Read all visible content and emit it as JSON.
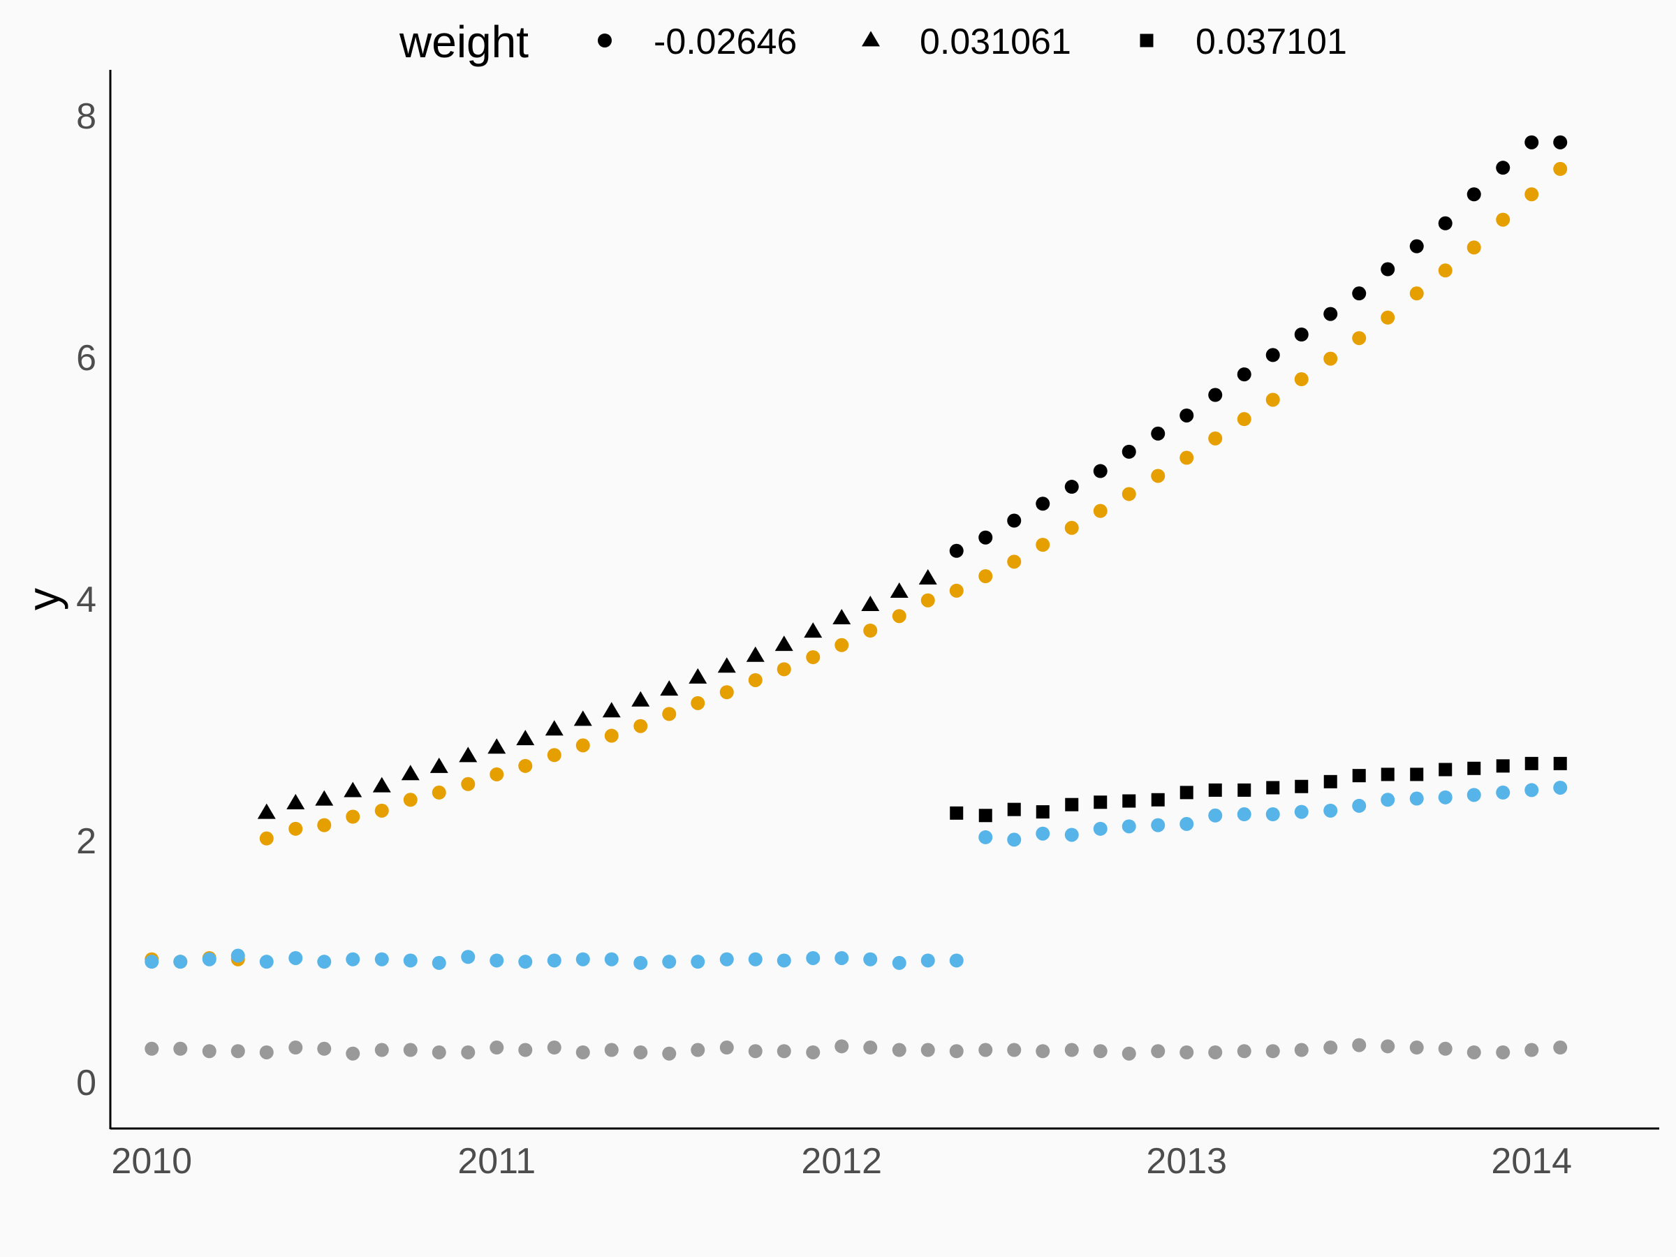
{
  "chart_data": {
    "type": "scatter",
    "title": "",
    "xlabel": "",
    "ylabel": "y",
    "xlim": [
      2009.88,
      2014.37
    ],
    "ylim": [
      -0.38,
      8.38
    ],
    "x_ticks": [
      2010,
      2011,
      2012,
      2013,
      2014
    ],
    "x_tick_labels": [
      "2010",
      "2011",
      "2012",
      "2013",
      "2014"
    ],
    "y_ticks": [
      0,
      2,
      4,
      6,
      8
    ],
    "y_tick_labels": [
      "0",
      "2",
      "4",
      "6",
      "8"
    ],
    "grid": false,
    "legend": {
      "title": "weight",
      "position": "top",
      "entries": [
        {
          "label": "-0.02646",
          "shape": "circle"
        },
        {
          "label": "0.031061",
          "shape": "triangle"
        },
        {
          "label": "0.037101",
          "shape": "square"
        }
      ]
    },
    "colors": {
      "black": "#000000",
      "orange": "#E69F00",
      "blue": "#56B4E9",
      "grey": "#999999"
    },
    "series": [
      {
        "shape": "triangle",
        "color": "#000000",
        "x": [
          2010.333,
          2010.417,
          2010.5,
          2010.583,
          2010.667,
          2010.75,
          2010.833,
          2010.917,
          2011.0,
          2011.083,
          2011.167,
          2011.25,
          2011.333,
          2011.417,
          2011.5,
          2011.583,
          2011.667,
          2011.75,
          2011.833,
          2011.917,
          2012.0,
          2012.083,
          2012.167,
          2012.25
        ],
        "y": [
          2.23,
          2.31,
          2.34,
          2.41,
          2.45,
          2.55,
          2.61,
          2.7,
          2.77,
          2.84,
          2.92,
          3.0,
          3.07,
          3.16,
          3.25,
          3.35,
          3.44,
          3.53,
          3.62,
          3.73,
          3.84,
          3.95,
          4.06,
          4.17
        ]
      },
      {
        "shape": "circle",
        "color": "#000000",
        "x": [
          2012.333,
          2012.417,
          2012.5,
          2012.583,
          2012.667,
          2012.75,
          2012.833,
          2012.917,
          2013.0,
          2013.083,
          2013.167,
          2013.25,
          2013.333,
          2013.417,
          2013.5,
          2013.583,
          2013.667,
          2013.75,
          2013.833,
          2013.917,
          2014.0,
          2014.083
        ],
        "y": [
          4.4,
          4.51,
          4.65,
          4.79,
          4.93,
          5.06,
          5.22,
          5.37,
          5.52,
          5.69,
          5.86,
          6.02,
          6.19,
          6.36,
          6.53,
          6.73,
          6.92,
          7.11,
          7.35,
          7.57,
          7.78,
          7.78
        ]
      },
      {
        "shape": "circle",
        "color": "#E69F00",
        "x": [
          2010.0,
          2010.083,
          2010.167,
          2010.25,
          2010.333,
          2010.417,
          2010.5,
          2010.583,
          2010.667,
          2010.75,
          2010.833,
          2010.917,
          2011.0,
          2011.083,
          2011.167,
          2011.25,
          2011.333,
          2011.417,
          2011.5,
          2011.583,
          2011.667,
          2011.75,
          2011.833,
          2011.917,
          2012.0,
          2012.083,
          2012.167,
          2012.25,
          2012.333,
          2012.417,
          2012.5,
          2012.583,
          2012.667,
          2012.75,
          2012.833,
          2012.917,
          2013.0,
          2013.083,
          2013.167,
          2013.25,
          2013.333,
          2013.417,
          2013.5,
          2013.583,
          2013.667,
          2013.75,
          2013.833,
          2013.917,
          2014.0,
          2014.083
        ],
        "y": [
          1.02,
          1.0,
          1.03,
          1.02,
          2.02,
          2.1,
          2.13,
          2.2,
          2.25,
          2.34,
          2.4,
          2.47,
          2.55,
          2.62,
          2.71,
          2.79,
          2.87,
          2.95,
          3.05,
          3.14,
          3.23,
          3.33,
          3.42,
          3.52,
          3.62,
          3.74,
          3.86,
          3.99,
          4.07,
          4.19,
          4.31,
          4.45,
          4.59,
          4.73,
          4.87,
          5.02,
          5.17,
          5.33,
          5.49,
          5.65,
          5.82,
          5.99,
          6.16,
          6.33,
          6.53,
          6.72,
          6.91,
          7.14,
          7.35,
          7.56
        ]
      },
      {
        "shape": "circle",
        "color": "#56B4E9",
        "x": [
          2010.0,
          2010.083,
          2010.167,
          2010.25,
          2010.333,
          2010.417,
          2010.5,
          2010.583,
          2010.667,
          2010.75,
          2010.833,
          2010.917,
          2011.0,
          2011.083,
          2011.167,
          2011.25,
          2011.333,
          2011.417,
          2011.5,
          2011.583,
          2011.667,
          2011.75,
          2011.833,
          2011.917,
          2012.0,
          2012.083,
          2012.167,
          2012.25,
          2012.333,
          2012.417,
          2012.5,
          2012.583,
          2012.667,
          2012.75,
          2012.833,
          2012.917,
          2013.0,
          2013.083,
          2013.167,
          2013.25,
          2013.333,
          2013.417,
          2013.5,
          2013.583,
          2013.667,
          2013.75,
          2013.833,
          2013.917,
          2014.0,
          2014.083
        ],
        "y": [
          1.0,
          1.0,
          1.02,
          1.05,
          1.0,
          1.03,
          1.0,
          1.02,
          1.02,
          1.01,
          0.99,
          1.04,
          1.01,
          1.0,
          1.01,
          1.02,
          1.02,
          0.99,
          1.0,
          1.0,
          1.02,
          1.02,
          1.01,
          1.03,
          1.03,
          1.02,
          0.99,
          1.01,
          1.01,
          2.03,
          2.01,
          2.06,
          2.05,
          2.1,
          2.12,
          2.13,
          2.14,
          2.21,
          2.22,
          2.22,
          2.24,
          2.25,
          2.29,
          2.34,
          2.35,
          2.36,
          2.38,
          2.4,
          2.42,
          2.44
        ]
      },
      {
        "shape": "square",
        "color": "#000000",
        "x": [
          2012.333,
          2012.417,
          2012.5,
          2012.583,
          2012.667,
          2012.75,
          2012.833,
          2012.917,
          2013.0,
          2013.083,
          2013.167,
          2013.25,
          2013.333,
          2013.417,
          2013.5,
          2013.583,
          2013.667,
          2013.75,
          2013.833,
          2013.917,
          2014.0,
          2014.083
        ],
        "y": [
          2.23,
          2.21,
          2.26,
          2.24,
          2.3,
          2.32,
          2.33,
          2.34,
          2.4,
          2.42,
          2.42,
          2.44,
          2.45,
          2.49,
          2.54,
          2.55,
          2.55,
          2.59,
          2.6,
          2.62,
          2.64,
          2.64
        ]
      },
      {
        "shape": "circle",
        "color": "#999999",
        "x": [
          2010.0,
          2010.083,
          2010.167,
          2010.25,
          2010.333,
          2010.417,
          2010.5,
          2010.583,
          2010.667,
          2010.75,
          2010.833,
          2010.917,
          2011.0,
          2011.083,
          2011.167,
          2011.25,
          2011.333,
          2011.417,
          2011.5,
          2011.583,
          2011.667,
          2011.75,
          2011.833,
          2011.917,
          2012.0,
          2012.083,
          2012.167,
          2012.25,
          2012.333,
          2012.417,
          2012.5,
          2012.583,
          2012.667,
          2012.75,
          2012.833,
          2012.917,
          2013.0,
          2013.083,
          2013.167,
          2013.25,
          2013.333,
          2013.417,
          2013.5,
          2013.583,
          2013.667,
          2013.75,
          2013.833,
          2013.917,
          2014.0,
          2014.083
        ],
        "y": [
          0.28,
          0.28,
          0.26,
          0.26,
          0.25,
          0.29,
          0.28,
          0.24,
          0.27,
          0.27,
          0.25,
          0.25,
          0.29,
          0.27,
          0.29,
          0.25,
          0.27,
          0.25,
          0.24,
          0.27,
          0.29,
          0.26,
          0.26,
          0.25,
          0.3,
          0.29,
          0.27,
          0.27,
          0.26,
          0.27,
          0.27,
          0.26,
          0.27,
          0.26,
          0.24,
          0.26,
          0.25,
          0.25,
          0.26,
          0.26,
          0.27,
          0.29,
          0.31,
          0.3,
          0.29,
          0.28,
          0.25,
          0.25,
          0.27,
          0.29
        ]
      }
    ]
  }
}
